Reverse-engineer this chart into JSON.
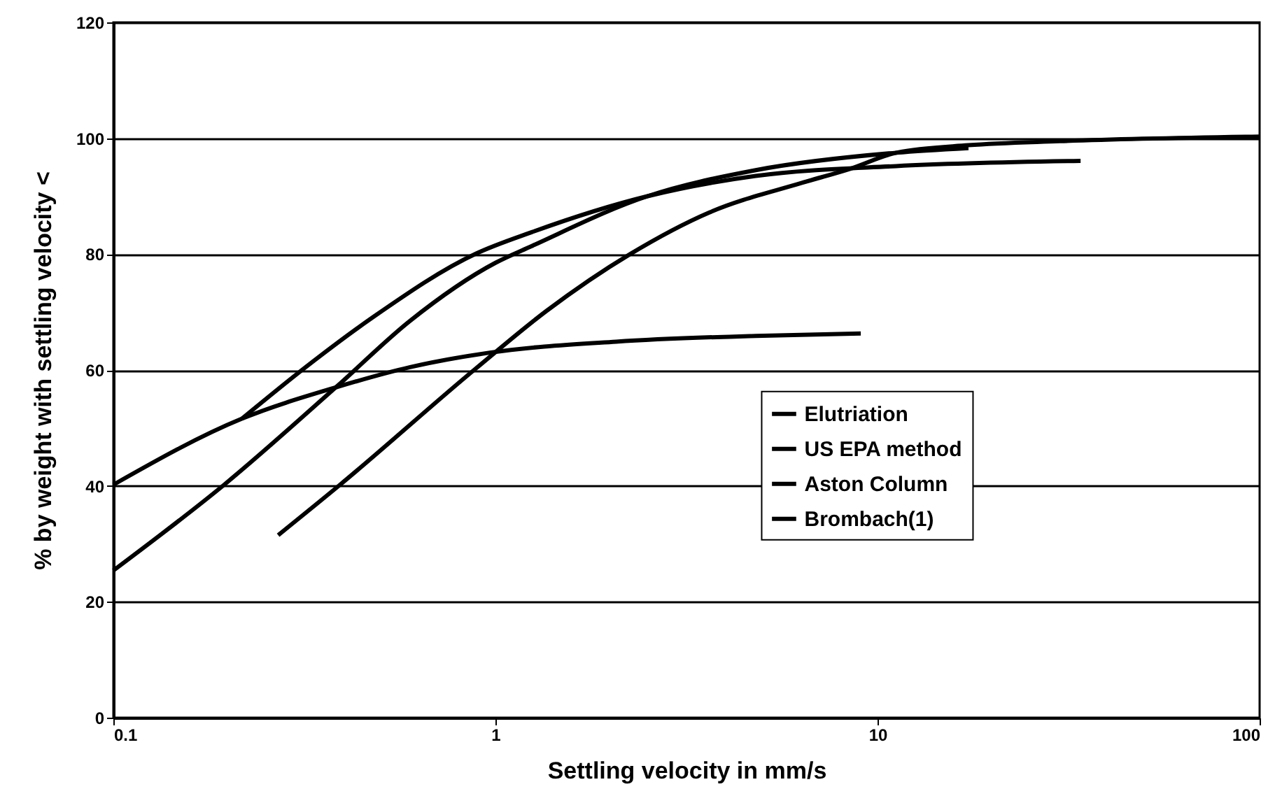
{
  "chart_data": {
    "type": "line",
    "xlabel": "Settling velocity in mm/s",
    "ylabel": "% by weight with settling velocity <",
    "log": "x",
    "xlim": [
      0.1,
      100
    ],
    "xticks": [
      0.1,
      1,
      10,
      100
    ],
    "ylim": [
      0,
      120
    ],
    "yticks": [
      0,
      20,
      40,
      60,
      80,
      100,
      120
    ],
    "grid": "y",
    "legend": "right",
    "marker": "none",
    "line_style": "solid",
    "series": [
      {
        "name": "Elutriation",
        "color": "#000000",
        "x": [
          0.1,
          0.217,
          0.382,
          0.598,
          0.966,
          2.07,
          4.8,
          9.04
        ],
        "values": [
          40.2,
          51.6,
          57,
          60.5,
          63,
          64.9,
          65.9,
          66.3
        ]
      },
      {
        "name": "US EPA method",
        "color": "#000000",
        "x": [
          0.1,
          0.195,
          0.382,
          0.598,
          1.0,
          1.245,
          2.5,
          4.8,
          11.2,
          17.3
        ],
        "values": [
          25.4,
          40.2,
          57,
          68.5,
          78.5,
          81.4,
          90,
          94.5,
          97.5,
          98.3
        ]
      },
      {
        "name": "Aston Column",
        "color": "#000000",
        "x": [
          0.217,
          0.323,
          0.48,
          0.89,
          1.245,
          2.5,
          4.8,
          11.2,
          34
        ],
        "values": [
          51.6,
          60.8,
          69.2,
          80.1,
          83.8,
          90,
          93.5,
          95.2,
          96.1
        ]
      },
      {
        "name": "Brombach(1)",
        "color": "#000000",
        "x": [
          0.27,
          0.392,
          0.89,
          1.36,
          2.25,
          3.63,
          6.34,
          8.45,
          11.2,
          17.3,
          30,
          100
        ],
        "values": [
          31.5,
          40.2,
          60.3,
          70.2,
          80,
          87.2,
          92.3,
          94.7,
          97.5,
          98.8,
          99.5,
          100.3
        ]
      }
    ]
  }
}
